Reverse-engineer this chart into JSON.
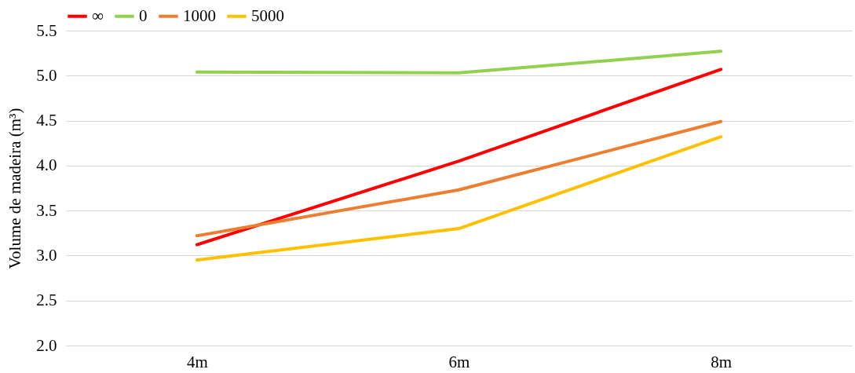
{
  "chart_data": {
    "type": "line",
    "ylabel": "Volume de madeira (m³)",
    "categories": [
      "4m",
      "6m",
      "8m"
    ],
    "series": [
      {
        "name": "∞",
        "color": "#ff0000",
        "values": [
          3.12,
          4.05,
          5.07
        ]
      },
      {
        "name": "0",
        "color": "#92d050",
        "values": [
          5.04,
          5.03,
          5.27
        ]
      },
      {
        "name": "1000",
        "color": "#ed7d31",
        "values": [
          3.22,
          3.73,
          4.49
        ]
      },
      {
        "name": "5000",
        "color": "#ffc000",
        "values": [
          2.95,
          3.3,
          4.32
        ]
      }
    ],
    "ylim": [
      2,
      5.5
    ],
    "yticks": [
      {
        "value": 2,
        "label": "2.0"
      },
      {
        "value": 2.5,
        "label": "2.5"
      },
      {
        "value": 3,
        "label": "3.0"
      },
      {
        "value": 3.5,
        "label": "3.5"
      },
      {
        "value": 4,
        "label": "4.0"
      },
      {
        "value": 4.5,
        "label": "4.5"
      },
      {
        "value": 5,
        "label": "5.0"
      },
      {
        "value": 5.5,
        "label": "5.5"
      }
    ],
    "grid": "y",
    "legend": "top",
    "marker": "none",
    "line_style": "solid"
  }
}
